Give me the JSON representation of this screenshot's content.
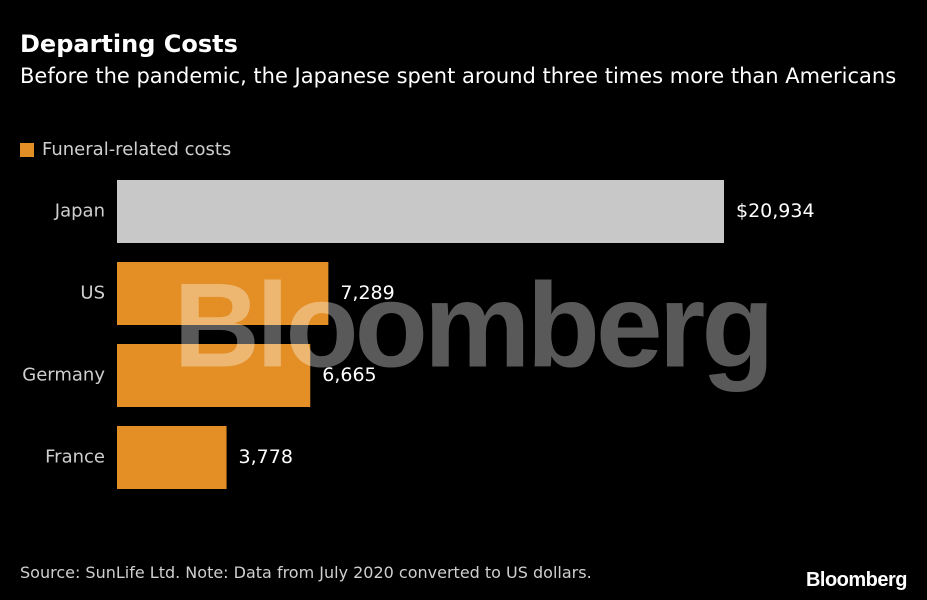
{
  "header": {
    "title": "Departing Costs",
    "subtitle": "Before the pandemic, the Japanese spent around three times more than Americans"
  },
  "legend": {
    "label": "Funeral-related costs",
    "color": "#e38f26"
  },
  "watermark": {
    "text": "Bloomberg"
  },
  "footer": {
    "source": "Source: SunLife Ltd. Note: Data from July 2020 converted to US dollars.",
    "brand": "Bloomberg"
  },
  "chart_data": {
    "type": "bar",
    "orientation": "horizontal",
    "title": "Departing Costs",
    "xlabel": "",
    "ylabel": "",
    "categories": [
      "Japan",
      "US",
      "Germany",
      "France"
    ],
    "values": [
      20934,
      7289,
      6665,
      3778
    ],
    "value_labels": [
      "$20,934",
      "7,289",
      "6,665",
      "3,778"
    ],
    "bar_colors": [
      "#c8c8c8",
      "#e38f26",
      "#e38f26",
      "#e38f26"
    ],
    "xlim": [
      0,
      20934
    ],
    "grid": false,
    "legend_position": "top-left",
    "series": [
      {
        "name": "Funeral-related costs",
        "values": [
          20934,
          7289,
          6665,
          3778
        ]
      }
    ]
  }
}
